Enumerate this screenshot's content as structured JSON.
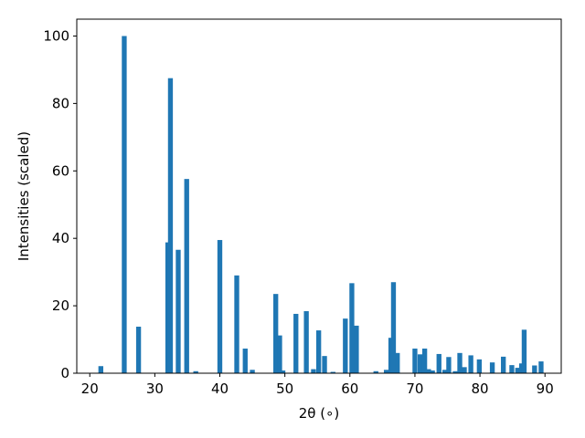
{
  "chart_data": {
    "type": "bar",
    "title": "",
    "xlabel": "2θ (∘)",
    "ylabel": "Intensities (scaled)",
    "xlim": [
      18,
      92.5
    ],
    "ylim": [
      0,
      105
    ],
    "x_ticks": [
      20,
      30,
      40,
      50,
      60,
      70,
      80,
      90
    ],
    "y_ticks": [
      0,
      20,
      40,
      60,
      80,
      100
    ],
    "bar_width": 0.75,
    "bar_color": "#1f77b4",
    "grid": false,
    "legend": "none",
    "x": [
      21.7,
      25.3,
      27.5,
      32.0,
      32.4,
      33.6,
      34.9,
      36.3,
      40.0,
      42.6,
      43.9,
      45.0,
      48.6,
      49.2,
      49.7,
      51.7,
      53.3,
      54.4,
      55.2,
      56.1,
      57.4,
      59.3,
      60.3,
      61.0,
      64.0,
      65.6,
      66.3,
      66.7,
      67.3,
      70.0,
      70.8,
      71.5,
      72.1,
      72.7,
      73.7,
      74.6,
      75.2,
      76.2,
      76.9,
      77.6,
      78.6,
      79.9,
      81.9,
      83.6,
      84.9,
      85.8,
      86.4,
      86.8,
      88.4,
      89.4
    ],
    "values": [
      2.1,
      100,
      13.8,
      38.8,
      87.5,
      36.6,
      57.6,
      0.6,
      39.5,
      29.0,
      7.3,
      1.0,
      23.5,
      11.2,
      0.8,
      17.6,
      18.4,
      1.2,
      12.7,
      5.1,
      0.4,
      16.2,
      26.7,
      14.1,
      0.6,
      1.0,
      10.5,
      27.0,
      6.0,
      7.3,
      5.6,
      7.3,
      1.2,
      0.8,
      5.7,
      1.0,
      4.8,
      0.6,
      6.0,
      1.8,
      5.3,
      4.1,
      3.2,
      4.9,
      2.4,
      1.6,
      2.9,
      12.9,
      2.3,
      3.5
    ]
  }
}
